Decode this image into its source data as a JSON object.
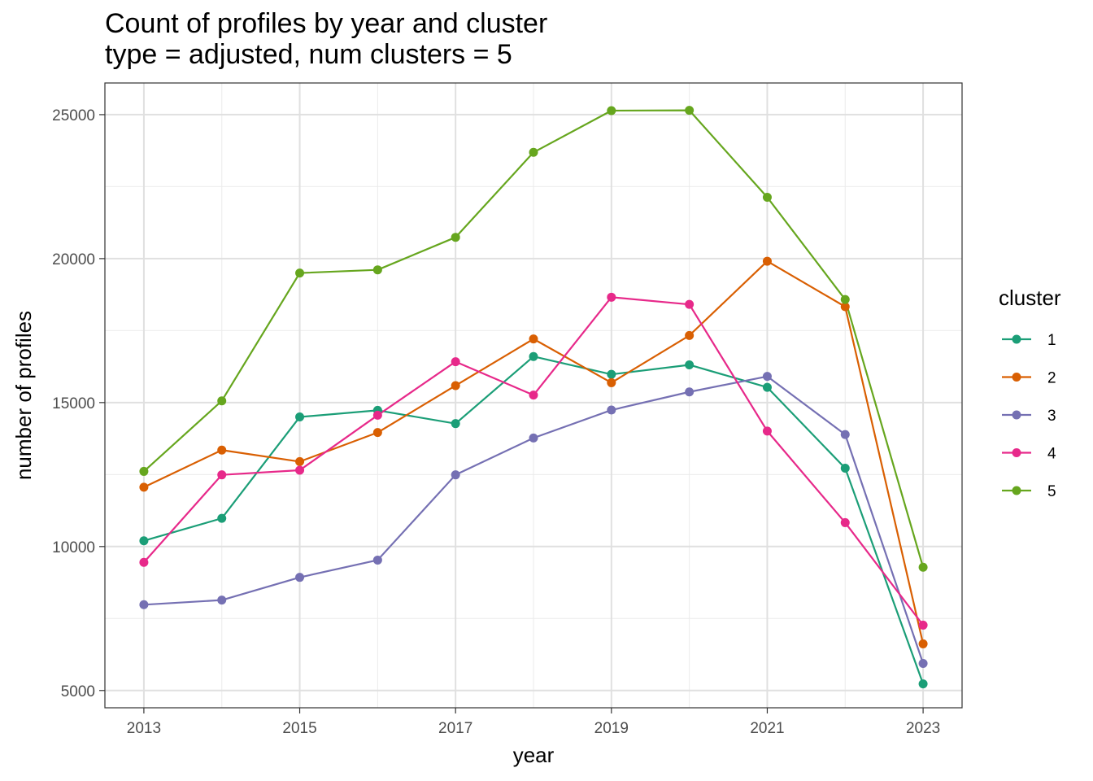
{
  "chart_data": {
    "type": "line",
    "title": "Count of profiles by year and cluster",
    "subtitle": "type = adjusted, num clusters = 5",
    "xlabel": "year",
    "ylabel": "number of profiles",
    "x": [
      2013,
      2014,
      2015,
      2016,
      2017,
      2018,
      2019,
      2020,
      2021,
      2022,
      2023
    ],
    "x_ticks": [
      "2013",
      "2015",
      "2017",
      "2019",
      "2021",
      "2023"
    ],
    "y_ticks": [
      "5000",
      "10000",
      "15000",
      "20000",
      "25000"
    ],
    "xlim": [
      2012.5,
      2023.5
    ],
    "ylim": [
      4400,
      26100
    ],
    "grid": true,
    "legend": {
      "title": "cluster",
      "position": "right"
    },
    "series": [
      {
        "name": "1",
        "color": "#1b9e77",
        "values": [
          10200,
          10980,
          14500,
          14730,
          14270,
          16600,
          15980,
          16310,
          15530,
          12720,
          5230
        ]
      },
      {
        "name": "2",
        "color": "#d95f02",
        "values": [
          12060,
          13350,
          12950,
          13960,
          15590,
          17210,
          15690,
          17330,
          19910,
          18330,
          6620
        ]
      },
      {
        "name": "3",
        "color": "#7570b3",
        "values": [
          7980,
          8140,
          8930,
          9530,
          12490,
          13770,
          14740,
          15370,
          15910,
          13890,
          5940
        ]
      },
      {
        "name": "4",
        "color": "#e7298a",
        "values": [
          9450,
          12490,
          12650,
          14560,
          16420,
          15260,
          18660,
          18410,
          14010,
          10830,
          7270
        ]
      },
      {
        "name": "5",
        "color": "#66a61e",
        "values": [
          12610,
          15060,
          19500,
          19610,
          20740,
          23690,
          25140,
          25150,
          22130,
          18580,
          9280
        ]
      }
    ]
  }
}
